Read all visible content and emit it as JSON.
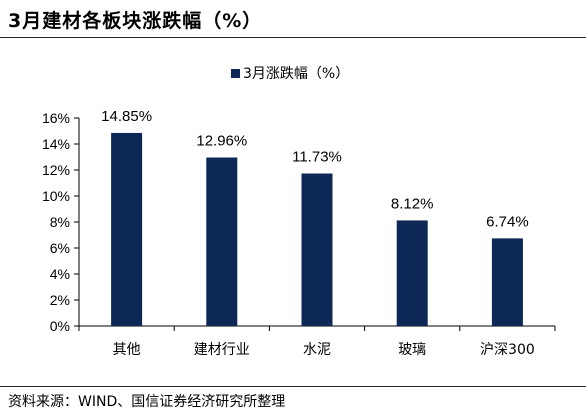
{
  "header": {
    "title": "3月建材各板块涨跌幅（%）"
  },
  "footer": {
    "source": "资料来源：WIND、国信证券经济研究所整理"
  },
  "chart_data": {
    "type": "bar",
    "categories": [
      "其他",
      "建材行业",
      "水泥",
      "玻璃",
      "沪深300"
    ],
    "series": [
      {
        "name": "3月涨跌幅（%）",
        "values": [
          14.85,
          12.96,
          11.73,
          8.12,
          6.74
        ]
      }
    ],
    "data_labels": [
      "14.85%",
      "12.96%",
      "11.73%",
      "8.12%",
      "6.74%"
    ],
    "y_ticks": [
      "0%",
      "2%",
      "4%",
      "6%",
      "8%",
      "10%",
      "12%",
      "14%",
      "16%"
    ],
    "ylim": [
      0,
      16
    ],
    "legend_position": "top-center",
    "grid": false,
    "colors": {
      "bar": "#0d2856",
      "axis": "#000000"
    }
  }
}
